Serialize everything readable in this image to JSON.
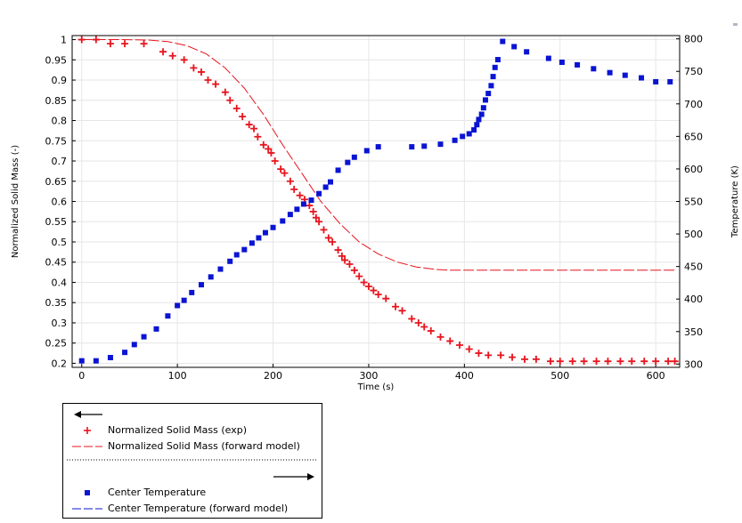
{
  "chart_data": {
    "type": "scatter",
    "title": "",
    "xlabel": "Time (s)",
    "ylabel_left": "Normalized Solid Mass (-)",
    "ylabel_right": "Temperature (K)",
    "xlim": [
      -10,
      625
    ],
    "ylim_left": [
      0.19,
      1.01
    ],
    "ylim_right": [
      295,
      805
    ],
    "x_ticks": [
      0,
      100,
      200,
      300,
      400,
      500,
      600
    ],
    "y_left_ticks": [
      0.2,
      0.25,
      0.3,
      0.35,
      0.4,
      0.45,
      0.5,
      0.55,
      0.6,
      0.65,
      0.7,
      0.75,
      0.8,
      0.85,
      0.9,
      0.95,
      1
    ],
    "y_left_tick_labels": [
      "0.2",
      "0.25",
      "0.3",
      "0.35",
      "0.4",
      "0.45",
      "0.5",
      "0.55",
      "0.6",
      "0.65",
      "0.7",
      "0.75",
      "0.8",
      "0.85",
      "0.9",
      "0.95",
      "1"
    ],
    "y_right_ticks": [
      300,
      350,
      400,
      450,
      500,
      550,
      600,
      650,
      700,
      750,
      800
    ],
    "grid": true,
    "legend_placement": "bottom-left outside",
    "series": [
      {
        "name": "Normalized Solid Mass (exp)",
        "axis": "left",
        "marker": "plus",
        "color": "#e8141e",
        "x": [
          0,
          15,
          30,
          45,
          65,
          85,
          95,
          107,
          117,
          125,
          132,
          140,
          150,
          155,
          162,
          168,
          175,
          180,
          184,
          190,
          195,
          198,
          202,
          208,
          212,
          218,
          222,
          228,
          233,
          238,
          242,
          245,
          248,
          253,
          258,
          262,
          268,
          272,
          275,
          280,
          285,
          290,
          295,
          300,
          305,
          310,
          318,
          328,
          335,
          345,
          352,
          358,
          365,
          375,
          385,
          395,
          405,
          415,
          425,
          438,
          450,
          463,
          475,
          490,
          500,
          513,
          525,
          538,
          550,
          563,
          575,
          588,
          600,
          613,
          620
        ],
        "y": [
          1.0,
          1.0,
          0.99,
          0.99,
          0.99,
          0.97,
          0.96,
          0.95,
          0.93,
          0.92,
          0.9,
          0.89,
          0.87,
          0.85,
          0.83,
          0.81,
          0.79,
          0.78,
          0.76,
          0.74,
          0.73,
          0.72,
          0.7,
          0.68,
          0.67,
          0.65,
          0.63,
          0.615,
          0.605,
          0.59,
          0.575,
          0.56,
          0.55,
          0.53,
          0.51,
          0.5,
          0.48,
          0.465,
          0.455,
          0.445,
          0.43,
          0.415,
          0.4,
          0.39,
          0.38,
          0.37,
          0.36,
          0.34,
          0.33,
          0.31,
          0.3,
          0.29,
          0.28,
          0.265,
          0.255,
          0.245,
          0.235,
          0.225,
          0.22,
          0.22,
          0.215,
          0.21,
          0.21,
          0.205,
          0.205,
          0.205,
          0.205,
          0.205,
          0.205,
          0.205,
          0.205,
          0.205,
          0.205,
          0.205,
          0.205
        ]
      },
      {
        "name": "Normalized Solid Mass (forward model)",
        "axis": "left",
        "marker": "dashed-line",
        "color": "#e8141e",
        "x": [
          0,
          40,
          70,
          90,
          110,
          130,
          150,
          170,
          190,
          210,
          230,
          250,
          270,
          290,
          310,
          330,
          350,
          370,
          385,
          400,
          450,
          500,
          550,
          600,
          620
        ],
        "y": [
          1.0,
          1.0,
          0.999,
          0.995,
          0.985,
          0.965,
          0.93,
          0.88,
          0.815,
          0.74,
          0.67,
          0.6,
          0.545,
          0.5,
          0.47,
          0.45,
          0.438,
          0.432,
          0.43,
          0.43,
          0.43,
          0.43,
          0.43,
          0.43,
          0.43
        ]
      },
      {
        "name": "Center Temperature",
        "axis": "right",
        "marker": "square",
        "color": "#0a14d2",
        "x": [
          0,
          15,
          30,
          45,
          55,
          65,
          78,
          90,
          100,
          107,
          115,
          125,
          135,
          145,
          155,
          162,
          170,
          178,
          185,
          192,
          200,
          210,
          218,
          225,
          232,
          240,
          248,
          255,
          260,
          268,
          278,
          285,
          298,
          310,
          345,
          358,
          375,
          390,
          398,
          405,
          410,
          413,
          415,
          418,
          420,
          422,
          425,
          428,
          430,
          432,
          435,
          440,
          452,
          465,
          488,
          502,
          518,
          535,
          552,
          568,
          585,
          600,
          615
        ],
        "y": [
          305,
          305,
          310,
          318,
          330,
          342,
          354,
          374,
          390,
          398,
          410,
          422,
          434,
          446,
          458,
          468,
          476,
          486,
          494,
          502,
          510,
          520,
          530,
          538,
          546,
          552,
          562,
          572,
          580,
          598,
          610,
          618,
          628,
          634,
          634,
          635,
          638,
          644,
          650,
          654,
          660,
          668,
          676,
          684,
          694,
          706,
          716,
          728,
          742,
          756,
          768,
          796,
          788,
          780,
          770,
          764,
          760,
          754,
          748,
          744,
          740,
          734,
          734
        ]
      },
      {
        "name": "Center Temperature (forward model)",
        "axis": "right",
        "marker": "dashed-line",
        "color": "#0a14d2",
        "x": [],
        "y": []
      }
    ]
  },
  "legend": {
    "items": [
      "Normalized Solid Mass (exp)",
      "Normalized Solid Mass (forward model)",
      "Center Temperature",
      "Center Temperature (forward model)"
    ]
  }
}
